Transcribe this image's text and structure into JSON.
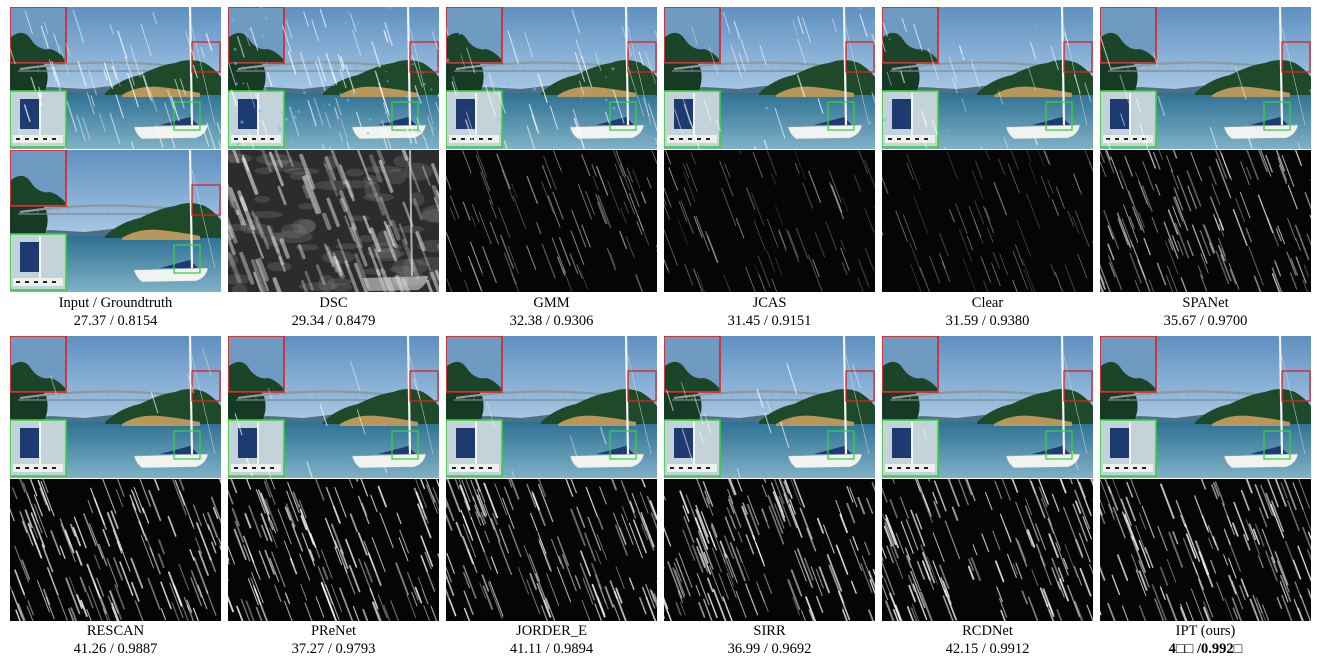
{
  "figure": {
    "rows": [
      {
        "panels": [
          {
            "method": "Input / Groundtruth",
            "score": "27.37 / 0.8154",
            "residual": "gt",
            "rain": 1.0,
            "noise": 0.0
          },
          {
            "method": "DSC",
            "score": "29.34 / 0.8479",
            "residual": "dsc",
            "rain": 1.0,
            "noise": 0.6
          },
          {
            "method": "GMM",
            "score": "32.38 / 0.9306",
            "residual": "gmm",
            "rain": 0.55,
            "noise": 0.15
          },
          {
            "method": "JCAS",
            "score": "31.45 / 0.9151",
            "residual": "jcas",
            "rain": 0.45,
            "noise": 0.1
          },
          {
            "method": "Clear",
            "score": "31.59 / 0.9380",
            "residual": "clear",
            "rain": 0.4,
            "noise": 0.05
          },
          {
            "method": "SPANet",
            "score": "35.67 / 0.9700",
            "residual": "spanet",
            "rain": 0.2,
            "noise": 0.0
          }
        ]
      },
      {
        "panels": [
          {
            "method": "RESCAN",
            "score": "41.26 / 0.9887",
            "residual": "rain",
            "rain": 0.05,
            "noise": 0.0
          },
          {
            "method": "PReNet",
            "score": "37.27 / 0.9793",
            "residual": "rain",
            "rain": 0.15,
            "noise": 0.0
          },
          {
            "method": "JORDER_E",
            "score": "41.11 / 0.9894",
            "residual": "rain",
            "rain": 0.05,
            "noise": 0.0
          },
          {
            "method": "SIRR",
            "score": "36.99 / 0.9692",
            "residual": "rain",
            "rain": 0.2,
            "noise": 0.0
          },
          {
            "method": "RCDNet",
            "score": "42.15 / 0.9912",
            "residual": "rain",
            "rain": 0.03,
            "noise": 0.0
          },
          {
            "method": "IPT (ours)",
            "score": "4□□ /0.992□",
            "residual": "rain",
            "rain": 0.0,
            "noise": 0.0,
            "bold": true
          }
        ]
      }
    ]
  }
}
